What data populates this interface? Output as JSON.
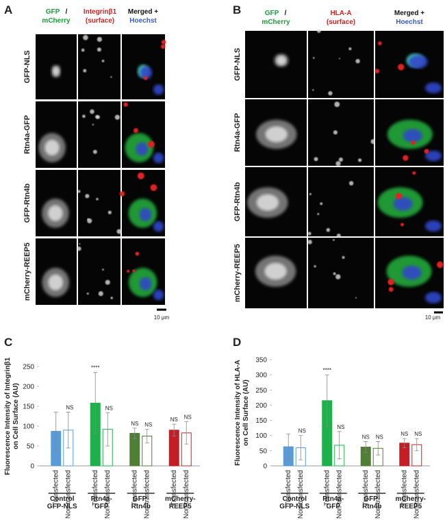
{
  "panel_a": {
    "letter": "A",
    "headers": [
      [
        "GFP",
        "/",
        "mCherry"
      ],
      [
        "Integrinβ1",
        "(surface)"
      ],
      [
        "Merged +",
        "Hoechst"
      ]
    ],
    "rows": [
      "GFP-NLS",
      "Rtn4a-GFP",
      "GFP-Rtn4b",
      "mCherry-REEP5"
    ],
    "scale_bar": "10 μm"
  },
  "panel_b": {
    "letter": "B",
    "headers": [
      [
        "GFP",
        "/",
        "mCherry"
      ],
      [
        "HLA-A",
        "(surface)"
      ],
      [
        "Merged +",
        "Hoechst"
      ]
    ],
    "rows": [
      "GFP-NLS",
      "Rtn4a-GFP",
      "GFP-Rtn4b",
      "mCherry-REEP5"
    ],
    "scale_bar": "10 μm"
  },
  "chart_data": [
    {
      "type": "bar",
      "letter": "C",
      "y_label": [
        "Fluorescence Intensity of Integrinβ1",
        "on Cell Surface (AU)"
      ],
      "ylim": [
        0,
        250
      ],
      "yticks": [
        0,
        50,
        100,
        150,
        200,
        250
      ],
      "groups": [
        [
          "Control",
          "GFP-NLS"
        ],
        [
          "Rtn4a-",
          "GFP"
        ],
        [
          "GFP-",
          "Rtn4b"
        ],
        [
          "mCherry-",
          "REEP5"
        ]
      ],
      "group_colors": [
        "#5b9bd5",
        "#1fb04b",
        "#4f7f34",
        "#c41e24"
      ],
      "series": [
        {
          "name": "Transfected",
          "values": [
            87,
            158,
            82,
            90
          ],
          "errors": [
            48,
            77,
            13,
            15
          ],
          "labels": [
            null,
            "****",
            "NS",
            "NS"
          ]
        },
        {
          "name": "Non-transfected",
          "values": [
            90,
            92,
            75,
            83
          ],
          "errors": [
            45,
            42,
            17,
            28
          ],
          "labels": [
            "NS",
            "NS",
            "NS",
            "NS"
          ]
        }
      ]
    },
    {
      "type": "bar",
      "letter": "D",
      "y_label": [
        "Fluorescence Intensity of HLA-A",
        "on Cell Surface (AU)"
      ],
      "ylim": [
        0,
        350
      ],
      "yticks": [
        0,
        50,
        100,
        150,
        200,
        250,
        300,
        350
      ],
      "groups": [
        [
          "Control",
          "GFP-NLS"
        ],
        [
          "Rtn4a-",
          "GFP"
        ],
        [
          "GFP-",
          "Rtn4b"
        ],
        [
          "mCherry-",
          "REEP5"
        ]
      ],
      "group_colors": [
        "#5b9bd5",
        "#1fb04b",
        "#4f7f34",
        "#c41e24"
      ],
      "series": [
        {
          "name": "Transfected",
          "values": [
            63,
            215,
            62,
            75
          ],
          "errors": [
            42,
            85,
            18,
            15
          ],
          "labels": [
            null,
            "****",
            "NS",
            "NS"
          ]
        },
        {
          "name": "Non-transfected",
          "values": [
            60,
            68,
            58,
            70
          ],
          "errors": [
            40,
            45,
            22,
            20
          ],
          "labels": [
            "NS",
            "NS",
            "NS",
            "NS"
          ]
        }
      ]
    }
  ]
}
